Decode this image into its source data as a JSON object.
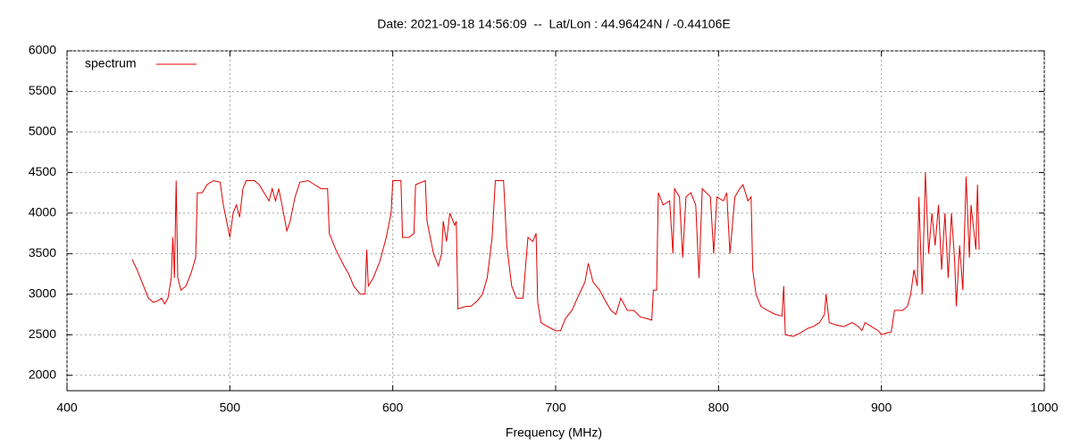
{
  "chart_data": {
    "type": "line",
    "title": "Date: 2021-09-18 14:56:09  --  Lat/Lon : 44.96424N / -0.44106E",
    "x_label": "Frequency (MHz)",
    "xlim": [
      400,
      1000
    ],
    "xticks": [
      400,
      500,
      600,
      700,
      800,
      900,
      1000
    ],
    "ylim": [
      1810,
      6000
    ],
    "yticks": [
      2000,
      2500,
      3000,
      3500,
      4000,
      4500,
      5000,
      5500,
      6000
    ],
    "grid": true,
    "legend": "top-left",
    "x": [
      440,
      443,
      446,
      450,
      453,
      456,
      458,
      460,
      462,
      464,
      465,
      466,
      467,
      468,
      470,
      473,
      476,
      479,
      480,
      483,
      486,
      490,
      494,
      496,
      498,
      500,
      502,
      504,
      506,
      508,
      510,
      515,
      518,
      521,
      524,
      526,
      528,
      530,
      532,
      535,
      537,
      540,
      543,
      548,
      552,
      556,
      560,
      561,
      565,
      570,
      573,
      576,
      580,
      583,
      584,
      585,
      588,
      592,
      596,
      599,
      600,
      605,
      606,
      610,
      613,
      614,
      620,
      621,
      625,
      628,
      630,
      631,
      633,
      635,
      638,
      639,
      640,
      645,
      648,
      652,
      655,
      658,
      661,
      663,
      668,
      670,
      673,
      676,
      680,
      683,
      686,
      688,
      689,
      691,
      695,
      700,
      703,
      706,
      710,
      714,
      718,
      720,
      723,
      727,
      731,
      734,
      737,
      740,
      744,
      748,
      752,
      756,
      759,
      760,
      762,
      763,
      766,
      770,
      772,
      773,
      776,
      778,
      780,
      783,
      786,
      788,
      790,
      795,
      797,
      799,
      803,
      805,
      807,
      810,
      813,
      815,
      818,
      820,
      821,
      823,
      826,
      830,
      835,
      839,
      840,
      841,
      846,
      850,
      855,
      858,
      862,
      865,
      866,
      868,
      872,
      877,
      882,
      886,
      888,
      890,
      894,
      898,
      900,
      903,
      906,
      908,
      913,
      916,
      918,
      920,
      922,
      923,
      925,
      927,
      929,
      931,
      933,
      935,
      937,
      939,
      941,
      943,
      945,
      946,
      948,
      950,
      952,
      954,
      955,
      958,
      959,
      960
    ],
    "series": [
      {
        "name": "spectrum",
        "color": "#e00000",
        "values": [
          3430,
          3300,
          3150,
          2950,
          2900,
          2920,
          2950,
          2880,
          2950,
          3200,
          3700,
          3200,
          4400,
          3200,
          3050,
          3100,
          3250,
          3450,
          4250,
          4250,
          4350,
          4400,
          4380,
          4100,
          3900,
          3700,
          4000,
          4100,
          3950,
          4300,
          4400,
          4400,
          4350,
          4250,
          4150,
          4300,
          4150,
          4300,
          4100,
          3780,
          3900,
          4200,
          4380,
          4400,
          4350,
          4300,
          4300,
          3750,
          3550,
          3350,
          3250,
          3100,
          3000,
          3000,
          3550,
          3100,
          3200,
          3400,
          3700,
          4000,
          4400,
          4400,
          3700,
          3700,
          3750,
          4350,
          4400,
          3900,
          3500,
          3350,
          3500,
          3900,
          3650,
          4000,
          3850,
          3900,
          2820,
          2850,
          2850,
          2920,
          3000,
          3200,
          3700,
          4400,
          4400,
          3600,
          3100,
          2950,
          2950,
          3700,
          3650,
          3750,
          2900,
          2650,
          2600,
          2550,
          2550,
          2700,
          2800,
          2980,
          3150,
          3380,
          3150,
          3050,
          2900,
          2800,
          2750,
          2950,
          2800,
          2800,
          2720,
          2700,
          2680,
          3050,
          3050,
          4250,
          4100,
          4150,
          3500,
          4300,
          4200,
          3450,
          4200,
          4250,
          4100,
          3200,
          4300,
          4200,
          3500,
          4200,
          4150,
          4250,
          3500,
          4200,
          4300,
          4350,
          4150,
          4200,
          3300,
          3000,
          2850,
          2800,
          2750,
          2730,
          3100,
          2500,
          2480,
          2520,
          2580,
          2600,
          2650,
          2750,
          3000,
          2650,
          2620,
          2600,
          2650,
          2600,
          2550,
          2650,
          2600,
          2550,
          2500,
          2520,
          2530,
          2800,
          2800,
          2850,
          3000,
          3300,
          3100,
          4200,
          3000,
          4500,
          3500,
          4000,
          3600,
          4100,
          3300,
          4000,
          3200,
          4000,
          3400,
          2850,
          3600,
          3050,
          4450,
          3450,
          4100,
          3550,
          4350,
          3550
        ]
      }
    ]
  }
}
